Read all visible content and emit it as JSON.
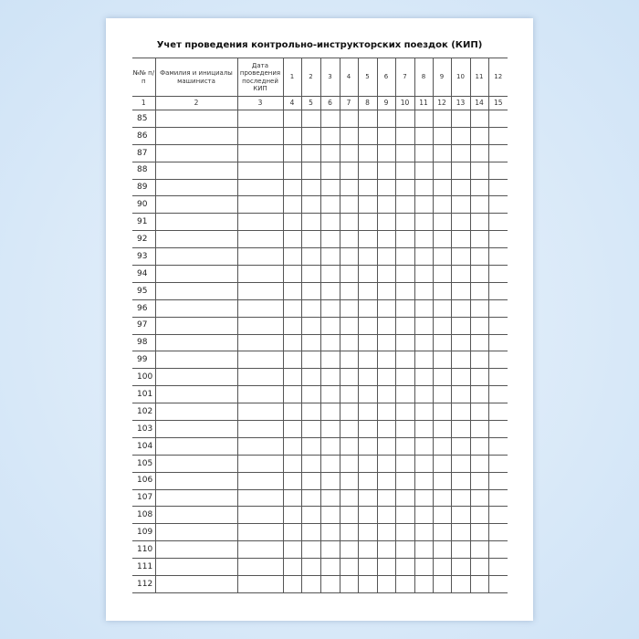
{
  "title": "Учет проведения контрольно-инструкторских поездок (КИП)",
  "headers": [
    "№№ п/п",
    "Фамилия и инициалы машиниста",
    "Дата проведения последней КИП",
    "1",
    "2",
    "3",
    "4",
    "5",
    "6",
    "7",
    "8",
    "9",
    "10",
    "11",
    "12"
  ],
  "column_numbers": [
    "1",
    "2",
    "3",
    "4",
    "5",
    "6",
    "7",
    "8",
    "9",
    "10",
    "11",
    "12",
    "13",
    "14",
    "15"
  ],
  "rows": [
    "85",
    "86",
    "87",
    "88",
    "89",
    "90",
    "91",
    "92",
    "93",
    "94",
    "95",
    "96",
    "97",
    "98",
    "99",
    "100",
    "101",
    "102",
    "103",
    "104",
    "105",
    "106",
    "107",
    "108",
    "109",
    "110",
    "111",
    "112"
  ]
}
